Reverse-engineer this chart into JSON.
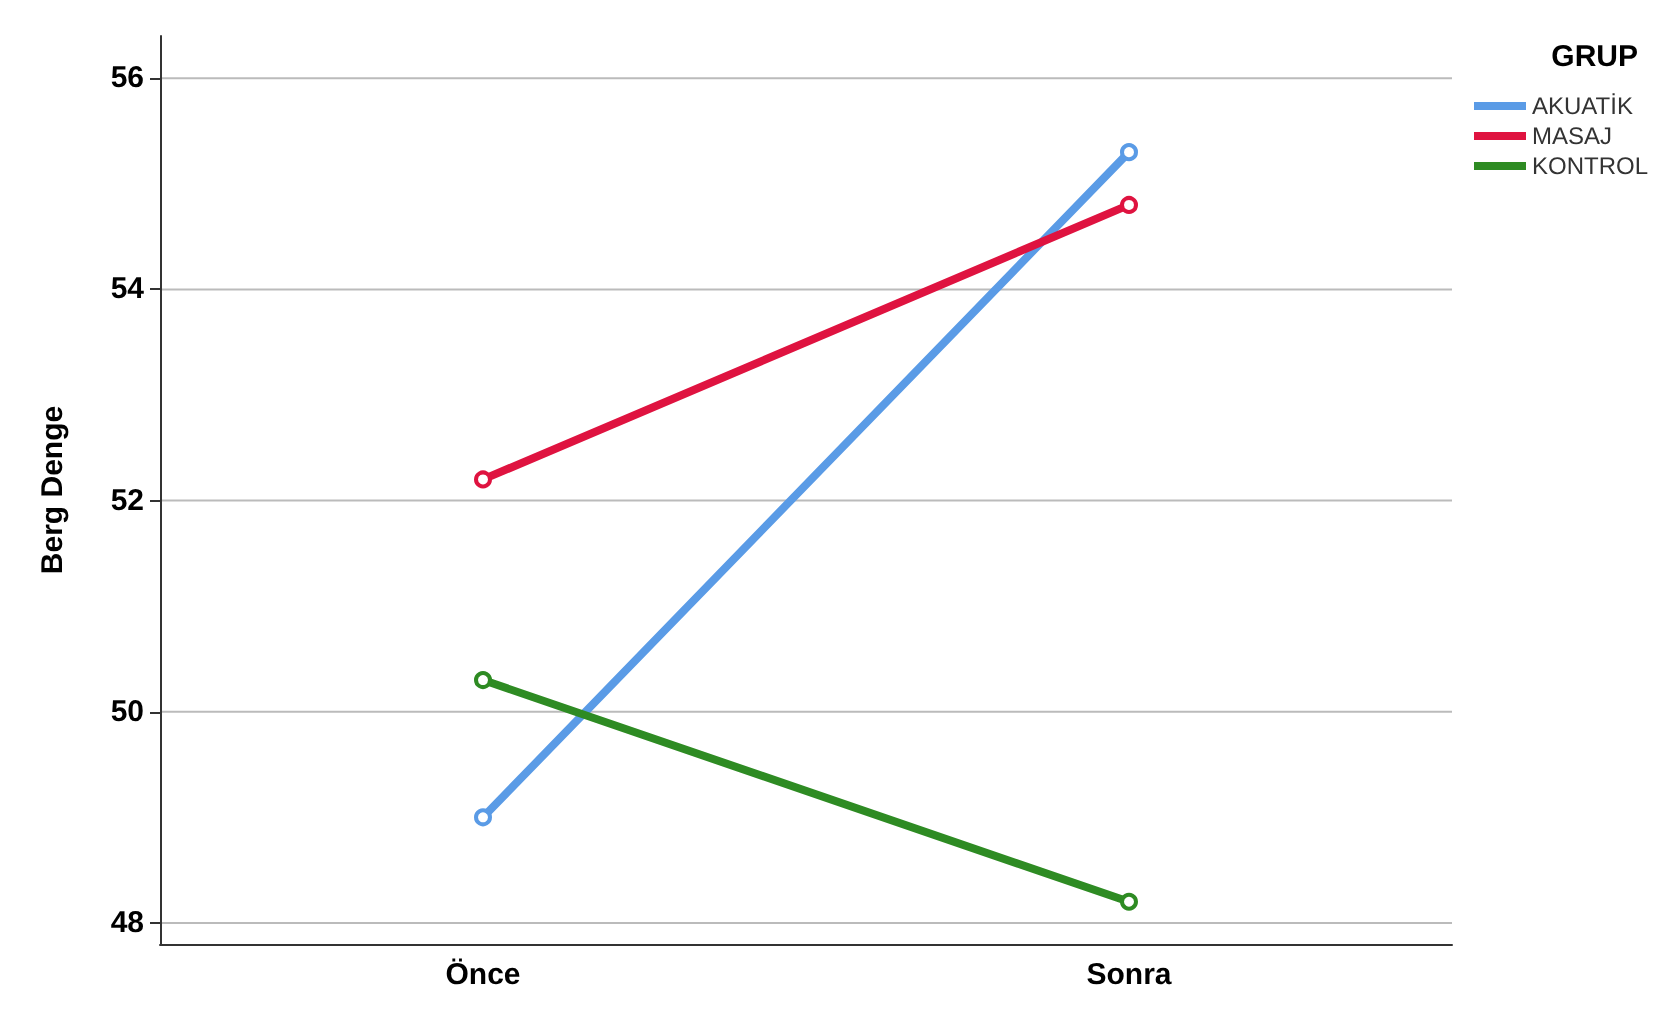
{
  "chart_data": {
    "type": "line",
    "ylabel": "Berg Denge",
    "legend_title": "GRUP",
    "categories": [
      "Önce",
      "Sonra"
    ],
    "series": [
      {
        "name": "AKUATİK",
        "color": "#5a9be6",
        "values": [
          49.0,
          55.3
        ]
      },
      {
        "name": "MASAJ",
        "color": "#df1340",
        "values": [
          52.2,
          54.8
        ]
      },
      {
        "name": "KONTROL",
        "color": "#2e8b23",
        "values": [
          50.3,
          48.2
        ]
      }
    ],
    "ylim": [
      47.8,
      56.4
    ],
    "yticks": [
      48,
      50,
      52,
      54,
      56
    ],
    "grid": "y",
    "legend": "top right",
    "marker": "circle",
    "line_style": "solid"
  }
}
